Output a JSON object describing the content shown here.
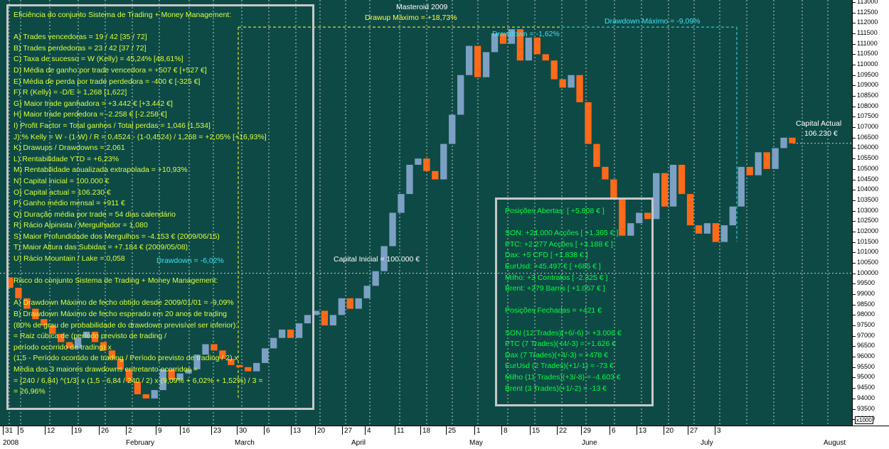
{
  "chart_data": {
    "type": "candlestick",
    "title": "Masteroid 2009",
    "y_axis": {
      "min": 92700,
      "max": 113100,
      "tick_step": 500,
      "labels": [
        "113000",
        "112500",
        "112000",
        "111500",
        "111000",
        "110500",
        "110000",
        "109500",
        "109000",
        "108500",
        "108000",
        "107500",
        "107000",
        "106500",
        "106000",
        "105500",
        "105000",
        "104500",
        "104000",
        "103500",
        "103000",
        "102500",
        "102000",
        "101500",
        "101000",
        "100500",
        "100000",
        "99500",
        "99000",
        "98500",
        "98000",
        "97500",
        "97000",
        "96500",
        "96000",
        "95500",
        "95000",
        "94500",
        "94000",
        "93500",
        "93000"
      ],
      "scale_note": "x1000"
    },
    "x_axis": {
      "day_labels": [
        "31",
        "5",
        "12",
        "19",
        "26",
        "2",
        "9",
        "16",
        "23",
        "30",
        "6",
        "13",
        "20",
        "27",
        "4",
        "11",
        "18",
        "25",
        "1",
        "8",
        "15",
        "22",
        "29",
        "6",
        "13",
        "20",
        "27",
        "3"
      ],
      "month_labels": [
        "2008",
        "February",
        "March",
        "April",
        "May",
        "June",
        "July",
        "August"
      ]
    },
    "series": [
      {
        "o": 99800,
        "c": 99300
      },
      {
        "o": 99300,
        "c": 98800
      },
      {
        "o": 98800,
        "c": 98300
      },
      {
        "o": 98300,
        "c": 97800
      },
      {
        "o": 97800,
        "c": 97500
      },
      {
        "o": 97500,
        "c": 97100
      },
      {
        "o": 97100,
        "c": 96700
      },
      {
        "o": 96700,
        "c": 96400
      },
      {
        "o": 96400,
        "c": 96900
      },
      {
        "o": 96900,
        "c": 97200
      },
      {
        "o": 97200,
        "c": 96700
      },
      {
        "o": 96700,
        "c": 96300
      },
      {
        "o": 96300,
        "c": 95900
      },
      {
        "o": 95900,
        "c": 95400
      },
      {
        "o": 95400,
        "c": 94800
      },
      {
        "o": 94800,
        "c": 94200
      },
      {
        "o": 94200,
        "c": 94000
      },
      {
        "o": 94000,
        "c": 94400
      },
      {
        "o": 94400,
        "c": 95400
      },
      {
        "o": 95400,
        "c": 94900
      },
      {
        "o": 94900,
        "c": 95200
      },
      {
        "o": 95200,
        "c": 95400
      },
      {
        "o": 95400,
        "c": 96100
      },
      {
        "o": 96100,
        "c": 96600
      },
      {
        "o": 96600,
        "c": 96300
      },
      {
        "o": 96300,
        "c": 95900
      },
      {
        "o": 95900,
        "c": 95600
      },
      {
        "o": 95600,
        "c": 95500
      },
      {
        "o": 95500,
        "c": 95300
      },
      {
        "o": 95300,
        "c": 95700
      },
      {
        "o": 95700,
        "c": 96400
      },
      {
        "o": 96400,
        "c": 96900
      },
      {
        "o": 96900,
        "c": 97300
      },
      {
        "o": 97300,
        "c": 96900
      },
      {
        "o": 96900,
        "c": 97600
      },
      {
        "o": 97600,
        "c": 98000
      },
      {
        "o": 98000,
        "c": 98200
      },
      {
        "o": 98200,
        "c": 97500
      },
      {
        "o": 97500,
        "c": 98000
      },
      {
        "o": 98000,
        "c": 98800
      },
      {
        "o": 98800,
        "c": 98300
      },
      {
        "o": 98300,
        "c": 98800
      },
      {
        "o": 98800,
        "c": 99400
      },
      {
        "o": 99400,
        "c": 100100
      },
      {
        "o": 100100,
        "c": 101300
      },
      {
        "o": 101300,
        "c": 102900
      },
      {
        "o": 102900,
        "c": 103800
      },
      {
        "o": 103800,
        "c": 105200
      },
      {
        "o": 105200,
        "c": 105500
      },
      {
        "o": 105500,
        "c": 104900
      },
      {
        "o": 104900,
        "c": 104500
      },
      {
        "o": 104500,
        "c": 106200
      },
      {
        "o": 106200,
        "c": 107600
      },
      {
        "o": 107600,
        "c": 109500
      },
      {
        "o": 109500,
        "c": 110900
      },
      {
        "o": 110900,
        "c": 109400
      },
      {
        "o": 109400,
        "c": 110600
      },
      {
        "o": 110600,
        "c": 111500
      },
      {
        "o": 111500,
        "c": 111000
      },
      {
        "o": 111000,
        "c": 111700
      },
      {
        "o": 111700,
        "c": 110200
      },
      {
        "o": 110200,
        "c": 111300
      },
      {
        "o": 111300,
        "c": 110500
      },
      {
        "o": 110500,
        "c": 110200
      },
      {
        "o": 110200,
        "c": 109300
      },
      {
        "o": 109300,
        "c": 108900
      },
      {
        "o": 108900,
        "c": 109500
      },
      {
        "o": 109500,
        "c": 108200
      },
      {
        "o": 108200,
        "c": 106200
      },
      {
        "o": 106200,
        "c": 105100
      },
      {
        "o": 105100,
        "c": 104500
      },
      {
        "o": 104500,
        "c": 103600
      },
      {
        "o": 103600,
        "c": 101800
      },
      {
        "o": 101800,
        "c": 102400
      },
      {
        "o": 102400,
        "c": 102900
      },
      {
        "o": 102900,
        "c": 102600
      },
      {
        "o": 102600,
        "c": 104800
      },
      {
        "o": 104800,
        "c": 103200
      },
      {
        "o": 103200,
        "c": 105200
      },
      {
        "o": 105200,
        "c": 103800
      },
      {
        "o": 103800,
        "c": 102300
      },
      {
        "o": 102300,
        "c": 101900
      },
      {
        "o": 101900,
        "c": 102400
      },
      {
        "o": 102400,
        "c": 101500
      },
      {
        "o": 101500,
        "c": 102300
      },
      {
        "o": 102300,
        "c": 103200
      },
      {
        "o": 103200,
        "c": 105100
      },
      {
        "o": 105100,
        "c": 104700
      },
      {
        "o": 104700,
        "c": 105800
      },
      {
        "o": 105800,
        "c": 105000
      },
      {
        "o": 105000,
        "c": 106000
      },
      {
        "o": 106000,
        "c": 106500
      },
      {
        "o": 106500,
        "c": 106230
      }
    ],
    "up_color": "#7ca0c4",
    "down_color": "#ff6a1a",
    "annotations": {
      "title": "Masteroid 2009",
      "drawup_max": "Drawup Máximo = +18,73%",
      "drawdown_max": "Drawdown Máximo = -9,09%",
      "drawdown_current": "Drawdown = -1,62%",
      "drawdown_early": "Drawdown = -6,02%",
      "capital_inicial": "Capital Inicial = 100.000 €",
      "capital_actual_label": "Capital Actual",
      "capital_actual_value": "106.230 €"
    }
  },
  "panel_left": {
    "lines": [
      "Eficiência do conjunto Sistema de Trading + Money Management:",
      "",
      "A) Trades vencedoras = 19 / 42   [35 / 72]",
      "B) Trades perdedoras = 23 / 42   [37 / 72]",
      "C) Taxa de sucesso = W (Kelly) = 45,24%   [48,61%]",
      "D) Média de ganho por trade vencedora = +507 €   [+527 €]",
      "E) Média de perda por trade perdedora = -400 €   [-325 €]",
      "F) R (Kelly) = -D/E = 1,268   [1,622]",
      "G) Maior trade ganhadora = +3.442 €   [+3.442 €]",
      "H) Maior trade perdedora = -2.258 €   [-2.258 €]",
      "I) Profit Factor = Total ganhos / Total perdas = 1,046   [1,534]",
      "J) % Kelly = W - (1-W) / R = 0,4524 - (1-0,4524) / 1,268 = +2,05%   [+16,93%]",
      "K) Drawups / Drawdowns = 2,061",
      "L) Rentabilidade YTD = +6,23%",
      "M) Rentabilidade anualizada extrapolada = +10,93%",
      "N) Capital inicial = 100.000 €",
      "O) Capital actual = 106.230 €",
      "P) Ganho médio mensal = +911 €",
      "Q) Duração média por trade = 54 dias calendário",
      "R) Rácio Alpinista / Mergulhador = 1,080",
      "S) Maior Profundidade dos Mergulhos = -4.153 € (2009/06/15)",
      "T) Maior Altura das Subidas = +7.184 € (2009/05/08)",
      "U) Rácio Mountain / Lake = 0,058",
      "",
      "Risco do conjunto Sistema de Trading + Money Management:",
      "",
      "A) Drawdown Máximo de fecho obtido desde 2009/01/01 = -9,09%",
      "B) Drawdown Máximo de fecho esperado em 20 anos de trading",
      "(80% de grau de probabilidade do drawdown previsível ser inferior):",
      "= Raiz cúbica de (período previsto de trading /",
      "período ocorrido de trading) x",
      "(1,5 - Período ocorrido de trading / Período previsto de trading / 2) x",
      "Média dos 3 maiores drawdowns entretanto ocorridos =",
      "= (240 / 6,84) ^(1/3) x (1,5 - 6,84 / 240 / 2) x (9,09% + 6,02% + 1,52%) / 3 =",
      "= 26,96%"
    ]
  },
  "panel_right": {
    "lines": [
      "Posições Abertas: [ +5.808 € ]",
      "",
      "SON: +24.000 Acções [ +1.365 € ]",
      "PTC: +2.277 Acções [ +3.188 € ]",
      "Dax: +5 CFD [ +1.838 € ]",
      "EurUsd: +45.497 € [ +685 € ]",
      "Milho: +3 Contratos [ -2.325 € ]",
      "Brent: +279 Barris [ +1.057 € ]",
      "",
      "Posições Fechadas = +421 €",
      "",
      "SON (12 Trades)(+6/-6) = +3.006 €",
      "PTC (7 Trades)(+4/-3) = +1.626 €",
      "Dax (7 Trades)(+4/-3) = +478 €",
      "EurUsd (2 Trades)(+1/-1) = -73 €",
      "Milho (11 Trades)(+3/-8) = -4.603 €",
      "Brent (3 Trades)(+1/-2) = -13 €"
    ]
  }
}
